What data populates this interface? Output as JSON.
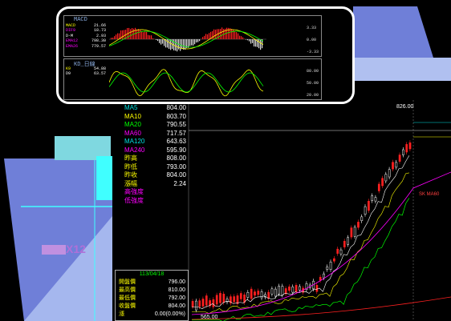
{
  "colors": {
    "up": "#ff2020",
    "down": "#00e0e0",
    "ma5": "#ffffff",
    "ma10": "#ffff00",
    "ma20": "#ff00ff",
    "ma60": "#00ff00",
    "ma120": "#ff00ff",
    "ma240": "#00c0ff",
    "k": "#ffff00",
    "d": "#ffffff"
  },
  "macd_panel": {
    "title": "MACD",
    "labels": [
      {
        "name": "MACD",
        "value": "21.66",
        "color": "#ffff00"
      },
      {
        "name": "DIF9",
        "value": "18.73",
        "color": "#ff00ff"
      },
      {
        "name": "D-M",
        "value": "2.93",
        "color": "#ffffff"
      },
      {
        "name": "EMA12",
        "value": "798.30",
        "color": "#ff00ff"
      },
      {
        "name": "EMA26",
        "value": "779.57",
        "color": "#ff00ff"
      }
    ],
    "axis": [
      "3.33",
      "0.00",
      "-3.33"
    ]
  },
  "kd_panel": {
    "title": "KD_日線",
    "labels": [
      {
        "name": "K9",
        "value": "54.88",
        "color": "#ffff00"
      },
      {
        "name": "D9",
        "value": "63.57",
        "color": "#ffffff"
      }
    ],
    "axis": [
      "80.00",
      "50.00",
      "20.00"
    ]
  },
  "price_info": [
    {
      "name": "MA5",
      "value": "804.00",
      "color": "#00e0e0"
    },
    {
      "name": "MA10",
      "value": "803.70",
      "color": "#ffff00"
    },
    {
      "name": "MA20",
      "value": "790.55",
      "color": "#00ff00"
    },
    {
      "name": "MA60",
      "value": "717.57",
      "color": "#ff00ff"
    },
    {
      "name": "MA120",
      "value": "643.63",
      "color": "#00e0e0"
    },
    {
      "name": "MA240",
      "value": "595.90",
      "color": "#ff00ff"
    },
    {
      "name": "昨高",
      "value": "808.00",
      "color": "#ffff00"
    },
    {
      "name": "昨低",
      "value": "793.00",
      "color": "#ffff00"
    },
    {
      "name": "昨收",
      "value": "804.00",
      "color": "#ffff00"
    },
    {
      "name": "漲幅",
      "value": "2.24",
      "color": "#ffff00"
    },
    {
      "name": "高強度",
      "value": "",
      "color": "#ff00ff"
    },
    {
      "name": "低強度",
      "value": "",
      "color": "#ff00ff"
    }
  ],
  "chart_labels": {
    "peak": "826.00",
    "low": "565.00",
    "right_tag": "SK MA60",
    "wm_text": "X12"
  },
  "databox": {
    "date": "113/04/18",
    "rows": [
      {
        "name": "開盤價",
        "value": "796.00"
      },
      {
        "name": "最高價",
        "value": "810.00"
      },
      {
        "name": "最低價",
        "value": "792.00"
      },
      {
        "name": "收盤價",
        "value": "804.00"
      },
      {
        "name": "漲",
        "value": "0.00(0.00%)"
      }
    ]
  }
}
